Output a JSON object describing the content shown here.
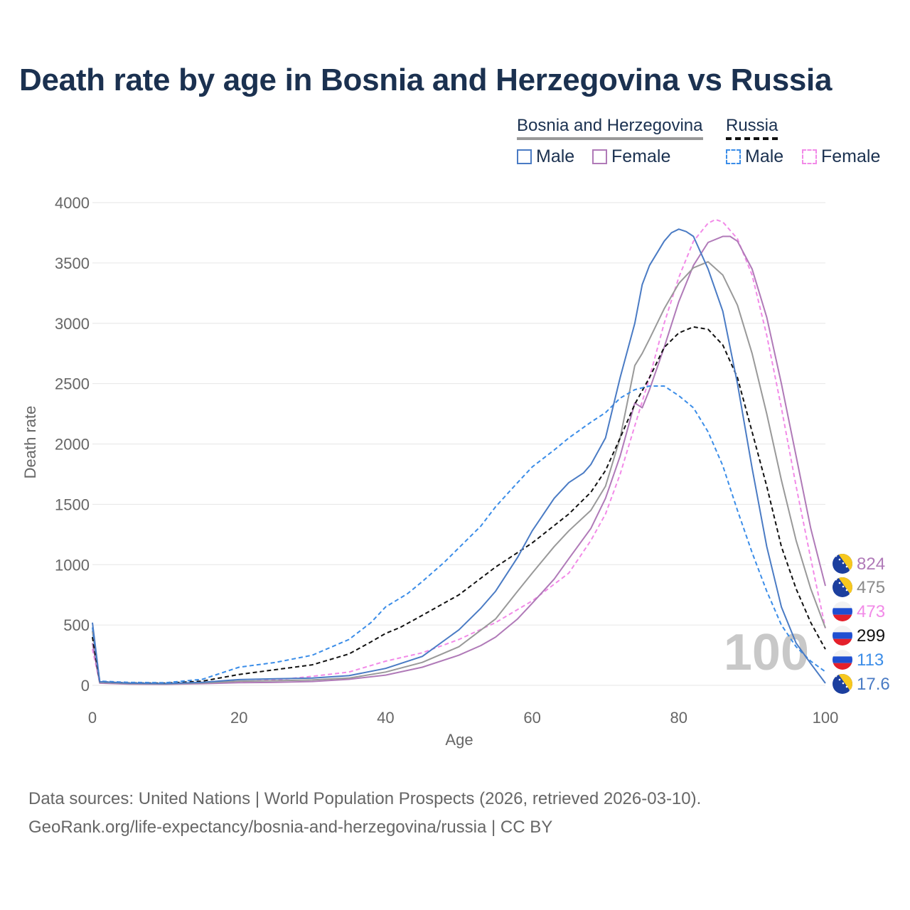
{
  "title": "Death rate by age in Bosnia and Herzegovina vs Russia",
  "legend": {
    "groups": [
      {
        "name": "Bosnia and Herzegovina",
        "line_color": "#999999",
        "dashed": false
      },
      {
        "name": "Russia",
        "line_color": "#111111",
        "dashed": true
      }
    ],
    "items": [
      {
        "label": "Male",
        "color": "#4a7bc4",
        "dashed": false
      },
      {
        "label": "Female",
        "color": "#b07ab8",
        "dashed": false
      },
      {
        "label": "Male",
        "color": "#3b8de8",
        "dashed": true
      },
      {
        "label": "Female",
        "color": "#f28ae8",
        "dashed": true
      }
    ]
  },
  "source_line1": "Data sources: United Nations | World Population Prospects (2026, retrieved 2026-03-10).",
  "source_line2": "GeoRank.org/life-expectancy/bosnia-and-herzegovina/russia | CC BY",
  "chart_data": {
    "type": "line",
    "xlabel": "Age",
    "ylabel": "Death rate",
    "xlim": [
      0,
      100
    ],
    "ylim": [
      0,
      4000
    ],
    "x_ticks": [
      0,
      20,
      40,
      60,
      80,
      100
    ],
    "y_ticks": [
      0,
      500,
      1000,
      1500,
      2000,
      2500,
      3000,
      3500,
      4000
    ],
    "grid": true,
    "watermark": "100",
    "series": [
      {
        "name": "Russia Female",
        "color": "#f28ae8",
        "dashed": true,
        "width": 2,
        "points": [
          [
            0,
            300
          ],
          [
            1,
            20
          ],
          [
            5,
            12
          ],
          [
            10,
            10
          ],
          [
            15,
            18
          ],
          [
            20,
            32
          ],
          [
            25,
            45
          ],
          [
            30,
            75
          ],
          [
            35,
            110
          ],
          [
            40,
            200
          ],
          [
            45,
            270
          ],
          [
            50,
            380
          ],
          [
            55,
            520
          ],
          [
            60,
            700
          ],
          [
            65,
            930
          ],
          [
            68,
            1200
          ],
          [
            70,
            1420
          ],
          [
            72,
            1750
          ],
          [
            74,
            2150
          ],
          [
            76,
            2550
          ],
          [
            78,
            3000
          ],
          [
            80,
            3380
          ],
          [
            82,
            3680
          ],
          [
            84,
            3830
          ],
          [
            85,
            3860
          ],
          [
            86,
            3840
          ],
          [
            88,
            3700
          ],
          [
            90,
            3400
          ],
          [
            92,
            2900
          ],
          [
            94,
            2300
          ],
          [
            96,
            1650
          ],
          [
            98,
            1050
          ],
          [
            100,
            473
          ]
        ],
        "end_label": "473"
      },
      {
        "name": "Bosnia and Herzegovina Female",
        "color": "#b07ab8",
        "dashed": false,
        "width": 2,
        "points": [
          [
            0,
            350
          ],
          [
            1,
            18
          ],
          [
            5,
            10
          ],
          [
            10,
            9
          ],
          [
            15,
            14
          ],
          [
            20,
            22
          ],
          [
            25,
            25
          ],
          [
            30,
            32
          ],
          [
            35,
            50
          ],
          [
            40,
            85
          ],
          [
            45,
            150
          ],
          [
            50,
            250
          ],
          [
            53,
            330
          ],
          [
            55,
            400
          ],
          [
            58,
            550
          ],
          [
            60,
            680
          ],
          [
            63,
            880
          ],
          [
            65,
            1050
          ],
          [
            68,
            1300
          ],
          [
            70,
            1550
          ],
          [
            72,
            1900
          ],
          [
            74,
            2340
          ],
          [
            75,
            2300
          ],
          [
            76,
            2450
          ],
          [
            78,
            2800
          ],
          [
            80,
            3180
          ],
          [
            82,
            3480
          ],
          [
            84,
            3670
          ],
          [
            86,
            3720
          ],
          [
            87,
            3720
          ],
          [
            88,
            3680
          ],
          [
            90,
            3450
          ],
          [
            92,
            3050
          ],
          [
            94,
            2500
          ],
          [
            96,
            1900
          ],
          [
            98,
            1300
          ],
          [
            100,
            824
          ]
        ],
        "end_label": "824"
      },
      {
        "name": "Bosnia and Herzegovina",
        "color": "#999999",
        "dashed": false,
        "width": 2,
        "points": [
          [
            0,
            450
          ],
          [
            1,
            25
          ],
          [
            5,
            15
          ],
          [
            10,
            12
          ],
          [
            15,
            20
          ],
          [
            20,
            35
          ],
          [
            25,
            38
          ],
          [
            30,
            45
          ],
          [
            35,
            60
          ],
          [
            40,
            110
          ],
          [
            45,
            190
          ],
          [
            50,
            320
          ],
          [
            55,
            550
          ],
          [
            58,
            780
          ],
          [
            60,
            930
          ],
          [
            63,
            1150
          ],
          [
            65,
            1280
          ],
          [
            68,
            1450
          ],
          [
            70,
            1650
          ],
          [
            72,
            2050
          ],
          [
            74,
            2650
          ],
          [
            75,
            2750
          ],
          [
            76,
            2870
          ],
          [
            78,
            3120
          ],
          [
            80,
            3330
          ],
          [
            82,
            3460
          ],
          [
            84,
            3510
          ],
          [
            86,
            3400
          ],
          [
            88,
            3150
          ],
          [
            90,
            2750
          ],
          [
            92,
            2250
          ],
          [
            94,
            1700
          ],
          [
            96,
            1200
          ],
          [
            98,
            800
          ],
          [
            100,
            475
          ]
        ],
        "end_label": "475"
      },
      {
        "name": "Russia",
        "color": "#111111",
        "dashed": true,
        "width": 2,
        "points": [
          [
            0,
            400
          ],
          [
            1,
            30
          ],
          [
            5,
            20
          ],
          [
            10,
            18
          ],
          [
            15,
            35
          ],
          [
            20,
            90
          ],
          [
            25,
            130
          ],
          [
            30,
            170
          ],
          [
            35,
            260
          ],
          [
            38,
            360
          ],
          [
            40,
            430
          ],
          [
            42,
            480
          ],
          [
            45,
            580
          ],
          [
            50,
            750
          ],
          [
            55,
            980
          ],
          [
            60,
            1180
          ],
          [
            65,
            1420
          ],
          [
            68,
            1600
          ],
          [
            70,
            1780
          ],
          [
            72,
            2050
          ],
          [
            74,
            2330
          ],
          [
            76,
            2550
          ],
          [
            78,
            2800
          ],
          [
            80,
            2920
          ],
          [
            82,
            2970
          ],
          [
            84,
            2950
          ],
          [
            86,
            2820
          ],
          [
            88,
            2550
          ],
          [
            90,
            2100
          ],
          [
            92,
            1650
          ],
          [
            94,
            1150
          ],
          [
            96,
            800
          ],
          [
            98,
            520
          ],
          [
            100,
            299
          ]
        ],
        "end_label": "299"
      },
      {
        "name": "Russia Male",
        "color": "#3b8de8",
        "dashed": true,
        "width": 2,
        "points": [
          [
            0,
            480
          ],
          [
            1,
            35
          ],
          [
            5,
            25
          ],
          [
            10,
            22
          ],
          [
            15,
            50
          ],
          [
            20,
            150
          ],
          [
            25,
            190
          ],
          [
            30,
            250
          ],
          [
            35,
            380
          ],
          [
            38,
            520
          ],
          [
            40,
            650
          ],
          [
            43,
            760
          ],
          [
            45,
            860
          ],
          [
            48,
            1020
          ],
          [
            50,
            1140
          ],
          [
            53,
            1320
          ],
          [
            55,
            1480
          ],
          [
            58,
            1680
          ],
          [
            60,
            1810
          ],
          [
            63,
            1950
          ],
          [
            65,
            2050
          ],
          [
            68,
            2180
          ],
          [
            70,
            2260
          ],
          [
            72,
            2380
          ],
          [
            74,
            2450
          ],
          [
            76,
            2480
          ],
          [
            78,
            2480
          ],
          [
            80,
            2400
          ],
          [
            82,
            2300
          ],
          [
            84,
            2100
          ],
          [
            86,
            1820
          ],
          [
            88,
            1450
          ],
          [
            90,
            1100
          ],
          [
            92,
            780
          ],
          [
            94,
            500
          ],
          [
            96,
            320
          ],
          [
            98,
            200
          ],
          [
            100,
            113
          ]
        ],
        "end_label": "113"
      },
      {
        "name": "Bosnia and Herzegovina Male",
        "color": "#4a7bc4",
        "dashed": false,
        "width": 2,
        "points": [
          [
            0,
            520
          ],
          [
            1,
            30
          ],
          [
            5,
            18
          ],
          [
            10,
            15
          ],
          [
            15,
            25
          ],
          [
            20,
            48
          ],
          [
            25,
            55
          ],
          [
            30,
            60
          ],
          [
            35,
            80
          ],
          [
            40,
            140
          ],
          [
            45,
            240
          ],
          [
            50,
            460
          ],
          [
            53,
            640
          ],
          [
            55,
            780
          ],
          [
            58,
            1060
          ],
          [
            60,
            1280
          ],
          [
            63,
            1550
          ],
          [
            65,
            1680
          ],
          [
            67,
            1760
          ],
          [
            68,
            1830
          ],
          [
            70,
            2050
          ],
          [
            72,
            2550
          ],
          [
            74,
            3000
          ],
          [
            75,
            3320
          ],
          [
            76,
            3480
          ],
          [
            78,
            3680
          ],
          [
            79,
            3750
          ],
          [
            80,
            3780
          ],
          [
            81,
            3760
          ],
          [
            82,
            3720
          ],
          [
            84,
            3450
          ],
          [
            86,
            3100
          ],
          [
            88,
            2500
          ],
          [
            90,
            1800
          ],
          [
            92,
            1150
          ],
          [
            94,
            650
          ],
          [
            96,
            350
          ],
          [
            98,
            180
          ],
          [
            100,
            17.6
          ]
        ],
        "end_label": "17.6"
      }
    ],
    "end_labels_order": [
      {
        "label": "824",
        "color": "#b07ab8",
        "flag": "ba"
      },
      {
        "label": "475",
        "color": "#8a8a8a",
        "flag": "ba"
      },
      {
        "label": "473",
        "color": "#f28ae8",
        "flag": "ru"
      },
      {
        "label": "299",
        "color": "#111111",
        "flag": "ru"
      },
      {
        "label": "113",
        "color": "#3b8de8",
        "flag": "ru"
      },
      {
        "label": "17.6",
        "color": "#4a7bc4",
        "flag": "ba"
      }
    ]
  }
}
